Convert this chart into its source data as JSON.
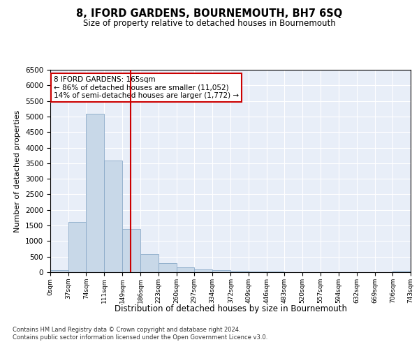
{
  "title": "8, IFORD GARDENS, BOURNEMOUTH, BH7 6SQ",
  "subtitle": "Size of property relative to detached houses in Bournemouth",
  "xlabel": "Distribution of detached houses by size in Bournemouth",
  "ylabel": "Number of detached properties",
  "footer_line1": "Contains HM Land Registry data © Crown copyright and database right 2024.",
  "footer_line2": "Contains public sector information licensed under the Open Government Licence v3.0.",
  "annotation_line1": "8 IFORD GARDENS: 165sqm",
  "annotation_line2": "← 86% of detached houses are smaller (11,052)",
  "annotation_line3": "14% of semi-detached houses are larger (1,772) →",
  "property_size": 165,
  "bin_edges": [
    0,
    37,
    74,
    111,
    149,
    186,
    223,
    260,
    297,
    334,
    372,
    409,
    446,
    483,
    520,
    557,
    594,
    632,
    669,
    706,
    743
  ],
  "bar_heights": [
    70,
    1620,
    5080,
    3580,
    1400,
    580,
    290,
    150,
    100,
    70,
    50,
    30,
    15,
    8,
    5,
    3,
    2,
    1,
    1,
    50
  ],
  "bar_color": "#c8d8e8",
  "bar_edge_color": "#8aaac8",
  "vline_color": "#cc0000",
  "vline_x": 165,
  "ylim": [
    0,
    6500
  ],
  "xlim": [
    0,
    743
  ],
  "background_color": "#e8eef8",
  "grid_color": "#ffffff",
  "annotation_box_color": "#ffffff",
  "annotation_box_edge": "#cc0000",
  "fig_facecolor": "#ffffff"
}
